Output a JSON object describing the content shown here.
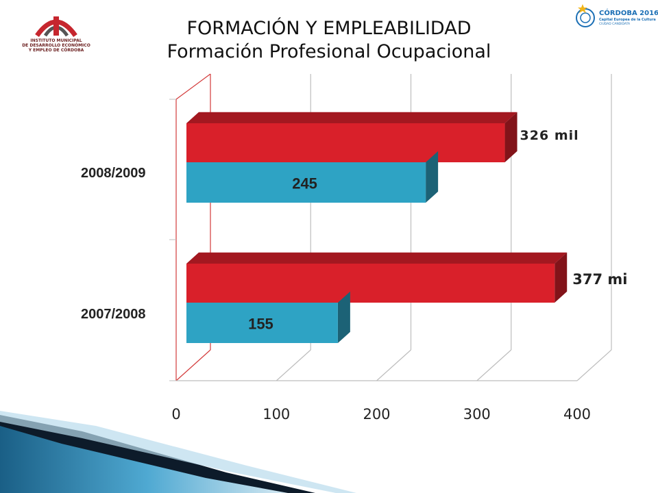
{
  "header": {
    "title_line1": "FORMACIÓN Y EMPLEABILIDAD",
    "title_line2": "Formación Profesional Ocupacional"
  },
  "logo_left": {
    "org_name_lines": [
      "INSTITUTO MUNICIPAL",
      "DE DESARROLLO ECONÓMICO",
      "Y EMPLEO DE CÓRDOBA"
    ]
  },
  "logo_right": {
    "line1": "CÓRDOBA 2016",
    "line2": "Capital Europea de la Cultura",
    "line3": "CIUDAD CANDIDATA"
  },
  "colors": {
    "red": "#d9202a",
    "blue": "#2ea3c4",
    "gridline": "#bdbdbd",
    "axis_red": "#d33a3a"
  },
  "chart_data": {
    "type": "bar",
    "orientation": "horizontal",
    "categories": [
      "2008/2009",
      "2007/2008"
    ],
    "series": [
      {
        "values": [
          326,
          377
        ],
        "labels": [
          "326 mil",
          "377 mi"
        ],
        "color": "#d9202a"
      },
      {
        "values": [
          245,
          155
        ],
        "labels": [
          "245",
          "155"
        ],
        "color": "#2ea3c4"
      }
    ],
    "xticks": [
      "0",
      "100",
      "200",
      "300",
      "400"
    ],
    "xlim": [
      0,
      400
    ],
    "grid": true,
    "three_d": true
  }
}
